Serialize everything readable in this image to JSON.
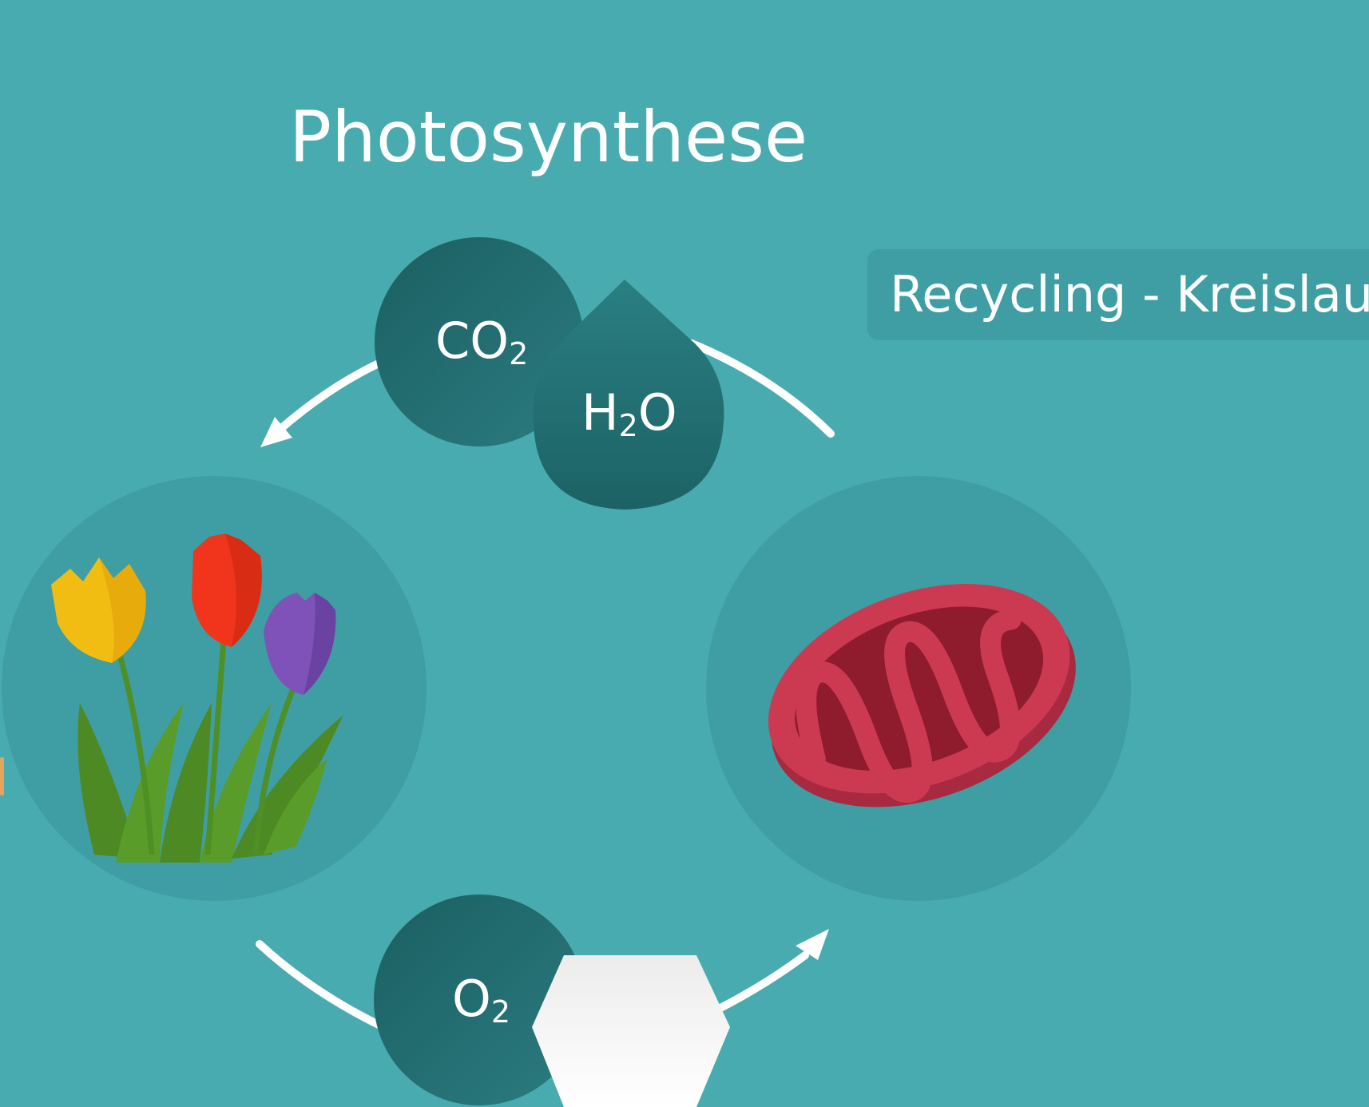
{
  "title": "Photosynthese",
  "tag": {
    "label": "Recycling - Kreislauf"
  },
  "molecules": {
    "co2": {
      "main": "CO",
      "sub": "2"
    },
    "h2o": {
      "pre": "H",
      "sub": "2",
      "post": "O"
    },
    "o2": {
      "main": "O",
      "sub": "2"
    }
  },
  "icons": {
    "plants": "tulips-icon",
    "organelle": "mitochondrion-icon",
    "sugar": "hexagon-glucose-icon"
  },
  "colors": {
    "background": "#48abaf",
    "node_circle": "#3f9ea3",
    "molecule_dark": "#1f6669",
    "mitochondrion": "#c9344f",
    "arrow": "#ffffff"
  }
}
